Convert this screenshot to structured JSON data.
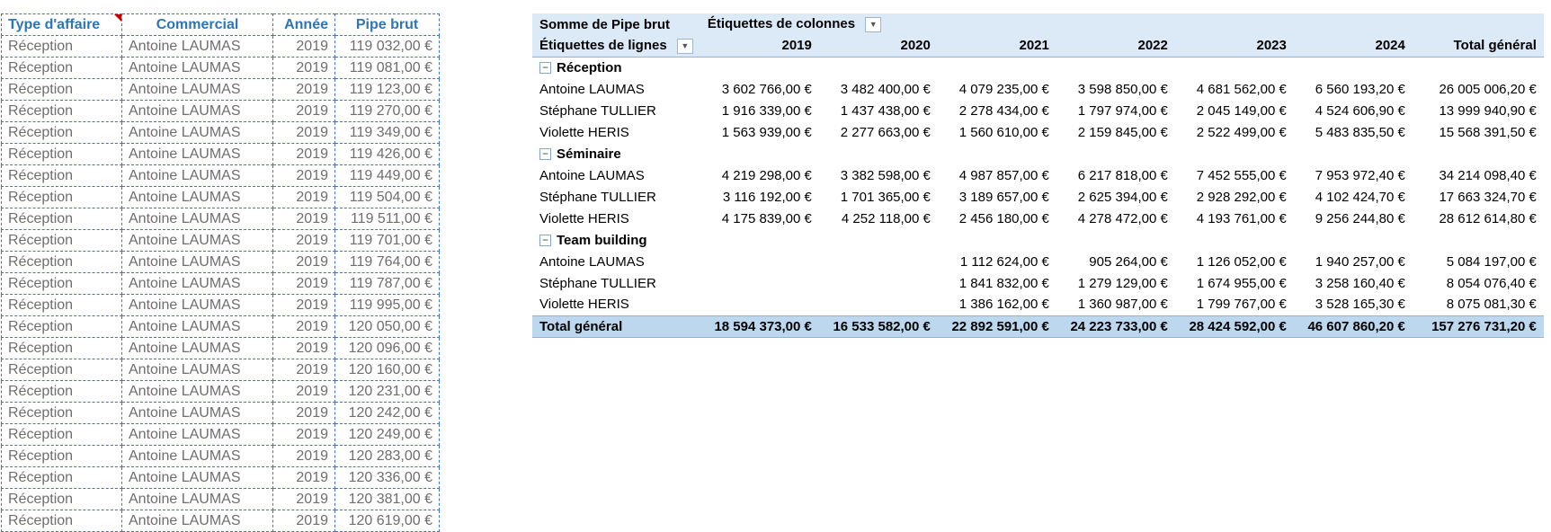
{
  "colors": {
    "table_header_text": "#2E75B6",
    "table_grid": "#4472C4",
    "table_text": "#6E6E6E",
    "comment_marker": "#C00000",
    "pivot_header_bg": "#DCE9F7",
    "pivot_total_bg": "#BDD7EE",
    "pivot_border": "#8FB4DC"
  },
  "source_table": {
    "headers": [
      "Type d'affaire",
      "Commercial",
      "Année",
      "Pipe brut"
    ],
    "rows": [
      [
        "Réception",
        "Antoine LAUMAS",
        "2019",
        "119 032,00 €"
      ],
      [
        "Réception",
        "Antoine LAUMAS",
        "2019",
        "119 081,00 €"
      ],
      [
        "Réception",
        "Antoine LAUMAS",
        "2019",
        "119 123,00 €"
      ],
      [
        "Réception",
        "Antoine LAUMAS",
        "2019",
        "119 270,00 €"
      ],
      [
        "Réception",
        "Antoine LAUMAS",
        "2019",
        "119 349,00 €"
      ],
      [
        "Réception",
        "Antoine LAUMAS",
        "2019",
        "119 426,00 €"
      ],
      [
        "Réception",
        "Antoine LAUMAS",
        "2019",
        "119 449,00 €"
      ],
      [
        "Réception",
        "Antoine LAUMAS",
        "2019",
        "119 504,00 €"
      ],
      [
        "Réception",
        "Antoine LAUMAS",
        "2019",
        "119 511,00 €"
      ],
      [
        "Réception",
        "Antoine LAUMAS",
        "2019",
        "119 701,00 €"
      ],
      [
        "Réception",
        "Antoine LAUMAS",
        "2019",
        "119 764,00 €"
      ],
      [
        "Réception",
        "Antoine LAUMAS",
        "2019",
        "119 787,00 €"
      ],
      [
        "Réception",
        "Antoine LAUMAS",
        "2019",
        "119 995,00 €"
      ],
      [
        "Réception",
        "Antoine LAUMAS",
        "2019",
        "120 050,00 €"
      ],
      [
        "Réception",
        "Antoine LAUMAS",
        "2019",
        "120 096,00 €"
      ],
      [
        "Réception",
        "Antoine LAUMAS",
        "2019",
        "120 160,00 €"
      ],
      [
        "Réception",
        "Antoine LAUMAS",
        "2019",
        "120 231,00 €"
      ],
      [
        "Réception",
        "Antoine LAUMAS",
        "2019",
        "120 242,00 €"
      ],
      [
        "Réception",
        "Antoine LAUMAS",
        "2019",
        "120 249,00 €"
      ],
      [
        "Réception",
        "Antoine LAUMAS",
        "2019",
        "120 283,00 €"
      ],
      [
        "Réception",
        "Antoine LAUMAS",
        "2019",
        "120 336,00 €"
      ],
      [
        "Réception",
        "Antoine LAUMAS",
        "2019",
        "120 381,00 €"
      ],
      [
        "Réception",
        "Antoine LAUMAS",
        "2019",
        "120 619,00 €"
      ]
    ]
  },
  "pivot": {
    "value_caption": "Somme de Pipe brut",
    "columns_caption": "Étiquettes de colonnes",
    "rows_caption": "Étiquettes de lignes",
    "columns": [
      "2019",
      "2020",
      "2021",
      "2022",
      "2023",
      "2024",
      "Total général"
    ],
    "groups": [
      {
        "name": "Réception",
        "rows": [
          {
            "name": "Antoine LAUMAS",
            "values": [
              "3 602 766,00 €",
              "3 482 400,00 €",
              "4 079 235,00 €",
              "3 598 850,00 €",
              "4 681 562,00 €",
              "6 560 193,20 €",
              "26 005 006,20 €"
            ]
          },
          {
            "name": "Stéphane TULLIER",
            "values": [
              "1 916 339,00 €",
              "1 437 438,00 €",
              "2 278 434,00 €",
              "1 797 974,00 €",
              "2 045 149,00 €",
              "4 524 606,90 €",
              "13 999 940,90 €"
            ]
          },
          {
            "name": "Violette HERIS",
            "values": [
              "1 563 939,00 €",
              "2 277 663,00 €",
              "1 560 610,00 €",
              "2 159 845,00 €",
              "2 522 499,00 €",
              "5 483 835,50 €",
              "15 568 391,50 €"
            ]
          }
        ]
      },
      {
        "name": "Séminaire",
        "rows": [
          {
            "name": "Antoine LAUMAS",
            "values": [
              "4 219 298,00 €",
              "3 382 598,00 €",
              "4 987 857,00 €",
              "6 217 818,00 €",
              "7 452 555,00 €",
              "7 953 972,40 €",
              "34 214 098,40 €"
            ]
          },
          {
            "name": "Stéphane TULLIER",
            "values": [
              "3 116 192,00 €",
              "1 701 365,00 €",
              "3 189 657,00 €",
              "2 625 394,00 €",
              "2 928 292,00 €",
              "4 102 424,70 €",
              "17 663 324,70 €"
            ]
          },
          {
            "name": "Violette HERIS",
            "values": [
              "4 175 839,00 €",
              "4 252 118,00 €",
              "2 456 180,00 €",
              "4 278 472,00 €",
              "4 193 761,00 €",
              "9 256 244,80 €",
              "28 612 614,80 €"
            ]
          }
        ]
      },
      {
        "name": "Team building",
        "rows": [
          {
            "name": "Antoine LAUMAS",
            "values": [
              "",
              "",
              "1 112 624,00 €",
              "905 264,00 €",
              "1 126 052,00 €",
              "1 940 257,00 €",
              "5 084 197,00 €"
            ]
          },
          {
            "name": "Stéphane TULLIER",
            "values": [
              "",
              "",
              "1 841 832,00 €",
              "1 279 129,00 €",
              "1 674 955,00 €",
              "3 258 160,40 €",
              "8 054 076,40 €"
            ]
          },
          {
            "name": "Violette HERIS",
            "values": [
              "",
              "",
              "1 386 162,00 €",
              "1 360 987,00 €",
              "1 799 767,00 €",
              "3 528 165,30 €",
              "8 075 081,30 €"
            ]
          }
        ]
      }
    ],
    "total": {
      "label": "Total général",
      "values": [
        "18 594 373,00 €",
        "16 533 582,00 €",
        "22 892 591,00 €",
        "24 223 733,00 €",
        "28 424 592,00 €",
        "46 607 860,20 €",
        "157 276 731,20 €"
      ]
    }
  }
}
